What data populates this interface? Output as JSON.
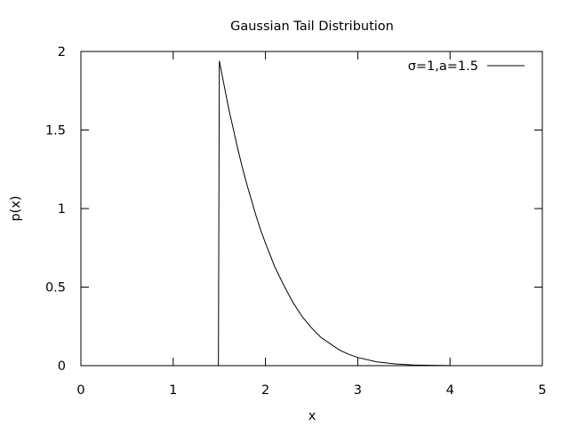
{
  "chart_data": {
    "type": "line",
    "title": "Gaussian Tail Distribution",
    "xlabel": "x",
    "ylabel": "p(x)",
    "xlim": [
      0,
      5
    ],
    "ylim": [
      0,
      2
    ],
    "xticks": [
      0,
      1,
      2,
      3,
      4,
      5
    ],
    "xtick_labels": [
      "0",
      "1",
      "2",
      "3",
      "4",
      "5"
    ],
    "yticks": [
      0,
      0.5,
      1,
      1.5,
      2
    ],
    "ytick_labels": [
      "0",
      "0.5",
      "1",
      "1.5",
      "2"
    ],
    "grid": false,
    "legend_position": "top-right",
    "series": [
      {
        "name": "σ=1,a=1.5",
        "color": "#000000",
        "x": [
          0,
          1.49,
          1.5,
          1.55,
          1.6,
          1.65,
          1.7,
          1.75,
          1.8,
          1.85,
          1.9,
          1.95,
          2.0,
          2.1,
          2.2,
          2.3,
          2.4,
          2.5,
          2.6,
          2.7,
          2.8,
          2.9,
          3.0,
          3.2,
          3.4,
          3.6,
          3.8,
          4.0
        ],
        "y": [
          0,
          0,
          1.94,
          1.79,
          1.64,
          1.51,
          1.38,
          1.26,
          1.15,
          1.05,
          0.95,
          0.86,
          0.78,
          0.63,
          0.51,
          0.4,
          0.31,
          0.24,
          0.18,
          0.14,
          0.1,
          0.073,
          0.052,
          0.025,
          0.011,
          0.0046,
          0.0018,
          0.0006
        ]
      }
    ]
  }
}
